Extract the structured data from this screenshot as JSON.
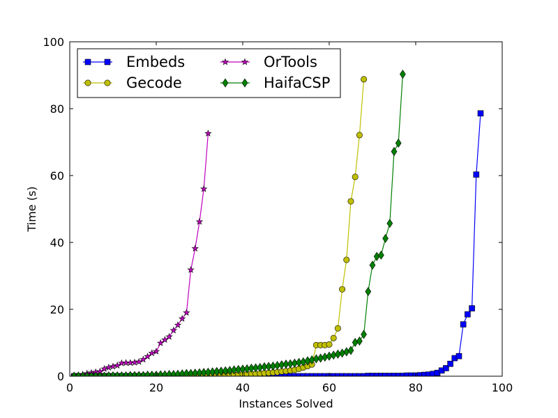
{
  "chart_data": {
    "type": "line",
    "title": "",
    "xlabel": "Instances Solved",
    "ylabel": "Time (s)",
    "xlim": [
      0,
      100
    ],
    "ylim": [
      0,
      100
    ],
    "xticks": [
      0,
      20,
      40,
      60,
      80,
      100
    ],
    "yticks": [
      0,
      20,
      40,
      60,
      80,
      100
    ],
    "xtick_labels": [
      "0",
      "20",
      "40",
      "60",
      "80",
      "100"
    ],
    "ytick_labels": [
      "0",
      "20",
      "40",
      "60",
      "80",
      "100"
    ],
    "grid": false,
    "legend": {
      "position": "top-left",
      "columns": 2
    },
    "series": [
      {
        "name": "Embeds",
        "color": "#0000ff",
        "marker": "square",
        "x": [
          1,
          2,
          3,
          4,
          5,
          6,
          7,
          8,
          9,
          10,
          11,
          12,
          13,
          14,
          15,
          16,
          17,
          18,
          19,
          20,
          21,
          22,
          23,
          24,
          25,
          26,
          27,
          28,
          29,
          30,
          31,
          32,
          33,
          34,
          35,
          36,
          37,
          38,
          39,
          40,
          41,
          42,
          43,
          44,
          45,
          46,
          47,
          48,
          49,
          50,
          51,
          52,
          53,
          54,
          55,
          56,
          57,
          58,
          59,
          60,
          61,
          62,
          63,
          64,
          65,
          66,
          67,
          68,
          69,
          70,
          71,
          72,
          73,
          74,
          75,
          76,
          77,
          78,
          79,
          80,
          81,
          82,
          83,
          84,
          85,
          86,
          87,
          88,
          89,
          90,
          91,
          92,
          93,
          94,
          95
        ],
        "y": [
          0,
          0,
          0,
          0,
          0,
          0,
          0,
          0,
          0,
          0,
          0,
          0,
          0,
          0,
          0,
          0,
          0,
          0,
          0,
          0,
          0,
          0,
          0,
          0,
          0,
          0,
          0,
          0,
          0,
          0,
          0,
          0,
          0,
          0,
          0,
          0,
          0,
          0,
          0,
          0,
          0,
          0,
          0,
          0,
          0,
          0,
          0,
          0,
          0,
          0,
          0,
          0,
          0,
          0,
          0,
          0,
          0,
          0,
          0,
          0,
          0,
          0,
          0,
          0,
          0,
          0,
          0,
          0,
          0.1,
          0.1,
          0.1,
          0.1,
          0.1,
          0.1,
          0.1,
          0.1,
          0.1,
          0.2,
          0.2,
          0.2,
          0.3,
          0.4,
          0.5,
          0.7,
          1,
          1.7,
          2.4,
          3.7,
          5.4,
          6,
          15.5,
          18.5,
          20.3,
          60.3,
          78.6
        ]
      },
      {
        "name": "Gecode",
        "color": "#bfbf00",
        "marker": "circle",
        "x": [
          1,
          2,
          3,
          4,
          5,
          6,
          7,
          8,
          9,
          10,
          11,
          12,
          13,
          14,
          15,
          16,
          17,
          18,
          19,
          20,
          21,
          22,
          23,
          24,
          25,
          26,
          27,
          28,
          29,
          30,
          31,
          32,
          33,
          34,
          35,
          36,
          37,
          38,
          39,
          40,
          41,
          42,
          43,
          44,
          45,
          46,
          47,
          48,
          49,
          50,
          51,
          52,
          53,
          54,
          55,
          56,
          57,
          58,
          59,
          60,
          61,
          62,
          63,
          64,
          65,
          66,
          67,
          68
        ],
        "y": [
          0,
          0,
          0,
          0,
          0,
          0,
          0,
          0,
          0,
          0,
          0,
          0,
          0,
          0,
          0,
          0,
          0,
          0,
          0.1,
          0.1,
          0.1,
          0.1,
          0.1,
          0.1,
          0.1,
          0.1,
          0.2,
          0.2,
          0.2,
          0.2,
          0.2,
          0.3,
          0.3,
          0.3,
          0.4,
          0.4,
          0.4,
          0.5,
          0.5,
          0.6,
          0.6,
          0.7,
          0.7,
          0.8,
          0.9,
          1,
          1.1,
          1.2,
          1.4,
          1.5,
          1.7,
          1.9,
          2.2,
          2.6,
          3,
          3.5,
          9.3,
          9.3,
          9.3,
          9.5,
          11.4,
          14.3,
          26,
          34.8,
          52.3,
          59.6,
          72.1,
          88.8
        ]
      },
      {
        "name": "OrTools",
        "color": "#bf00bf",
        "marker": "star",
        "x": [
          1,
          2,
          3,
          4,
          5,
          6,
          7,
          8,
          9,
          10,
          11,
          12,
          13,
          14,
          15,
          16,
          17,
          18,
          19,
          20,
          21,
          22,
          23,
          24,
          25,
          26,
          27,
          28,
          29,
          30,
          31,
          32
        ],
        "y": [
          0.1,
          0.3,
          0.5,
          0.8,
          1,
          1.2,
          1.4,
          2.2,
          2.6,
          2.9,
          3.2,
          3.9,
          4,
          4,
          4.1,
          4.3,
          5,
          5.9,
          6.9,
          7.4,
          9.9,
          10.9,
          11.8,
          13.7,
          15.3,
          17.2,
          19,
          31.8,
          38.2,
          46.2,
          56,
          72.6
        ]
      },
      {
        "name": "HaifaCSP",
        "color": "#007f00",
        "marker": "diamond",
        "x": [
          1,
          2,
          3,
          4,
          5,
          6,
          7,
          8,
          9,
          10,
          11,
          12,
          13,
          14,
          15,
          16,
          17,
          18,
          19,
          20,
          21,
          22,
          23,
          24,
          25,
          26,
          27,
          28,
          29,
          30,
          31,
          32,
          33,
          34,
          35,
          36,
          37,
          38,
          39,
          40,
          41,
          42,
          43,
          44,
          45,
          46,
          47,
          48,
          49,
          50,
          51,
          52,
          53,
          54,
          55,
          56,
          57,
          58,
          59,
          60,
          61,
          62,
          63,
          64,
          65,
          66,
          67,
          68,
          69,
          70,
          71,
          72,
          73,
          74,
          75,
          76,
          77
        ],
        "y": [
          0,
          0,
          0,
          0,
          0,
          0,
          0,
          0,
          0.1,
          0.1,
          0.1,
          0.1,
          0.1,
          0.2,
          0.2,
          0.2,
          0.2,
          0.3,
          0.3,
          0.3,
          0.4,
          0.4,
          0.5,
          0.5,
          0.6,
          0.7,
          0.8,
          0.8,
          0.9,
          1,
          1.1,
          1.2,
          1.3,
          1.4,
          1.5,
          1.6,
          1.7,
          1.9,
          2,
          2.1,
          2.2,
          2.4,
          2.5,
          2.6,
          2.8,
          2.9,
          3,
          3.2,
          3.4,
          3.6,
          3.7,
          3.9,
          4.1,
          4.3,
          4.6,
          4.9,
          5.2,
          5.4,
          5.7,
          6,
          6.3,
          6.6,
          6.9,
          7.3,
          7.7,
          10.1,
          10.5,
          12.5,
          25.3,
          33.2,
          35.8,
          36.2,
          41.2,
          45.7,
          67.2,
          69.7,
          90.3
        ]
      }
    ]
  }
}
